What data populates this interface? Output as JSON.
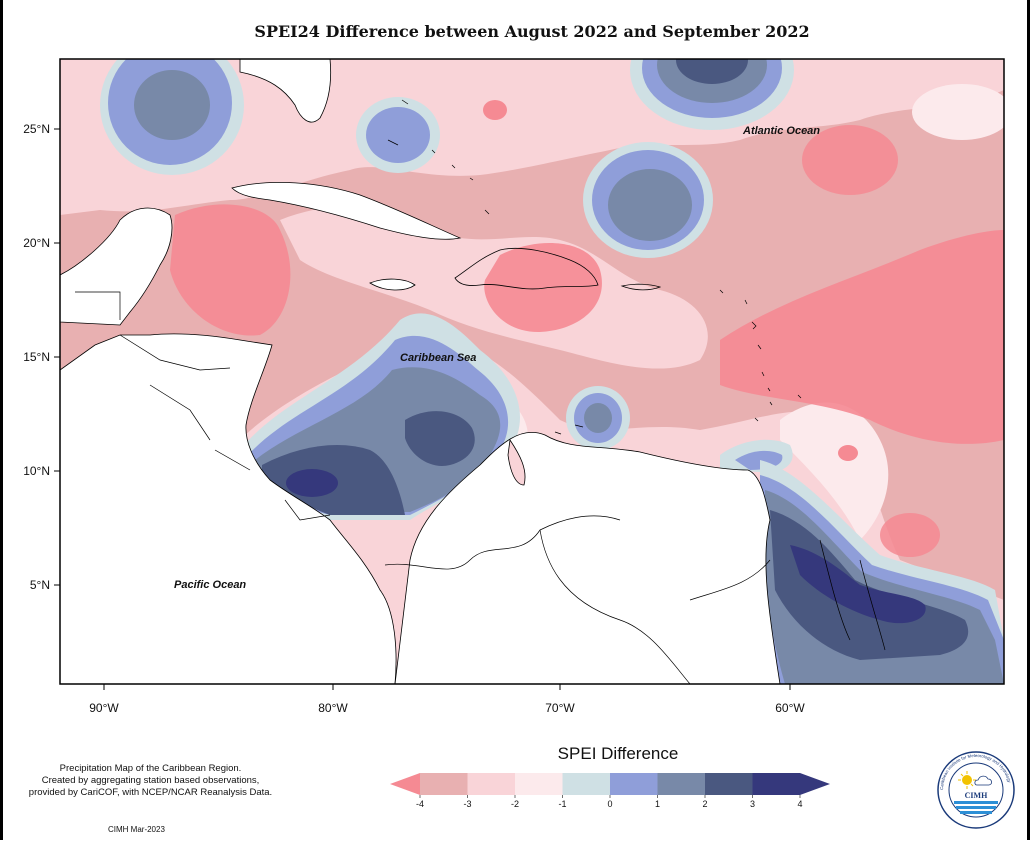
{
  "title": "SPEI24 Difference between August 2022 and September 2022",
  "map": {
    "lat_labels": [
      "25°N",
      "20°N",
      "15°N",
      "10°N",
      "5°N"
    ],
    "lon_labels": [
      "90°W",
      "80°W",
      "70°W",
      "60°W"
    ],
    "ocean_labels": {
      "atlantic": "Atlantic Ocean",
      "caribbean": "Caribbean Sea",
      "pacific": "Pacific Ocean"
    }
  },
  "legend": {
    "title": "SPEI Difference",
    "ticks": [
      "-4",
      "-3",
      "-2",
      "-1",
      "0",
      "1",
      "2",
      "3",
      "4"
    ],
    "colors": [
      "#f58a93",
      "#e8b0b1",
      "#f9d4d8",
      "#fceaec",
      "#cfe0e4",
      "#8f9ed9",
      "#7889a8",
      "#4a5880",
      "#35387c"
    ]
  },
  "footnote": {
    "line1": "Precipitation Map of the Caribbean Region.",
    "line2": "Created by aggregating station based observations,",
    "line3": "provided by CariCOF, with NCEP/NCAR Reanalysis Data."
  },
  "credit": "CIMH Mar-2023",
  "logo": {
    "text": "CIMH",
    "ring_text": "Caribbean Institute for Meteorology and Hydrology",
    "sun_color": "#f2c200",
    "water_color": "#2c8fd6"
  }
}
